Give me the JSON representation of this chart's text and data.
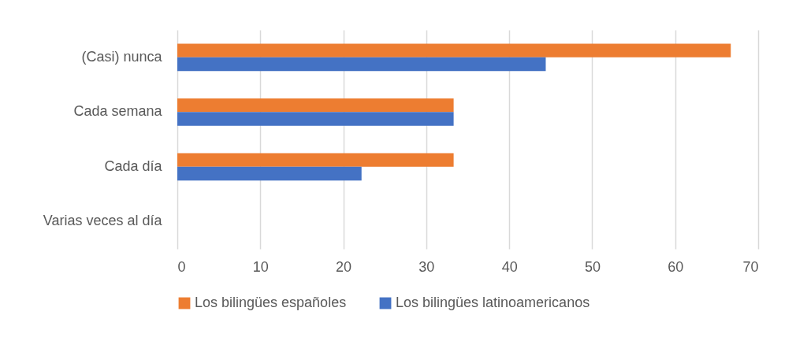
{
  "chart_data": {
    "type": "bar",
    "orientation": "horizontal",
    "categories": [
      "(Casi) nunca",
      "Cada semana",
      "Cada día",
      "Varias veces al día"
    ],
    "series": [
      {
        "name": "Los bilingües españoles",
        "color": "#ed7d31",
        "values": [
          66.7,
          33.3,
          33.3,
          0
        ]
      },
      {
        "name": "Los bilingües latinoamericanos",
        "color": "#4472c4",
        "values": [
          44.4,
          33.3,
          22.2,
          0
        ]
      }
    ],
    "xlim": [
      0,
      70
    ],
    "xticks": [
      0,
      10,
      20,
      30,
      40,
      50,
      60,
      70
    ],
    "grid": "x",
    "legend": "bottom"
  }
}
